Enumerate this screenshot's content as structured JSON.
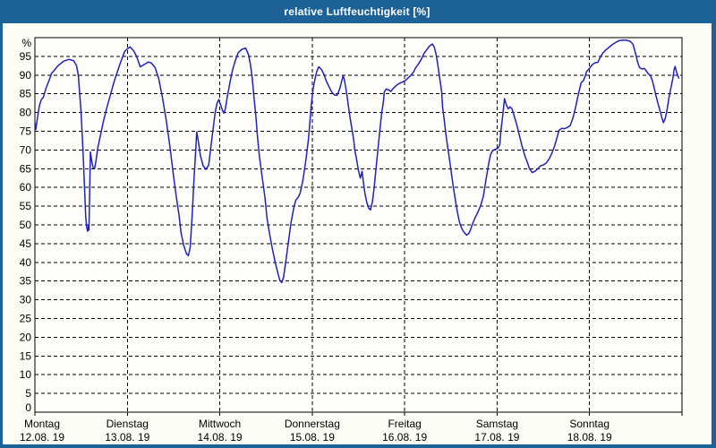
{
  "title": "relative Luftfeuchtigkeit [%]",
  "colors": {
    "titlebar": "#1d6296",
    "window_border": "#1d6296",
    "title_text": "#ffffff",
    "window_bg": "#fcfdf5",
    "plot_bg": "#fdfdf9",
    "grid": "#000000",
    "axis_text": "#000000",
    "line": "#2121c0"
  },
  "chart_data": {
    "type": "line",
    "title": "relative Luftfeuchtigkeit [%]",
    "ylabel": "%",
    "y_unit": "%",
    "ylim": [
      0,
      100
    ],
    "y_ticks": [
      0,
      5,
      10,
      15,
      20,
      25,
      30,
      35,
      40,
      45,
      50,
      55,
      60,
      65,
      70,
      75,
      80,
      85,
      90,
      95
    ],
    "xlim_days": [
      0,
      7
    ],
    "grid": "dashed",
    "legend": "none",
    "x_axis_days": [
      {
        "label": "Montag",
        "date": "12.08. 19"
      },
      {
        "label": "Dienstag",
        "date": "13.08. 19"
      },
      {
        "label": "Mittwoch",
        "date": "14.08. 19"
      },
      {
        "label": "Donnerstag",
        "date": "15.08. 19"
      },
      {
        "label": "Freitag",
        "date": "16.08. 19"
      },
      {
        "label": "Samstag",
        "date": "17.08. 19"
      },
      {
        "label": "Sonntag",
        "date": "18.08. 19"
      }
    ],
    "series": [
      {
        "name": "relative Luftfeuchtigkeit",
        "unit": "%",
        "color": "#2121c0",
        "points": [
          [
            0.005,
            77
          ],
          [
            0.01,
            75.5
          ],
          [
            0.03,
            79
          ],
          [
            0.05,
            82
          ],
          [
            0.07,
            83.5
          ],
          [
            0.09,
            84
          ],
          [
            0.12,
            86.5
          ],
          [
            0.16,
            89
          ],
          [
            0.18,
            90.5
          ],
          [
            0.2,
            91
          ],
          [
            0.25,
            92.5
          ],
          [
            0.31,
            93.7
          ],
          [
            0.37,
            94.2
          ],
          [
            0.42,
            93.8
          ],
          [
            0.45,
            92.5
          ],
          [
            0.47,
            90
          ],
          [
            0.5,
            80
          ],
          [
            0.52,
            70
          ],
          [
            0.54,
            58
          ],
          [
            0.55,
            52
          ],
          [
            0.56,
            49.5
          ],
          [
            0.57,
            48.3
          ],
          [
            0.58,
            50
          ],
          [
            0.585,
            48.6
          ],
          [
            0.59,
            55
          ],
          [
            0.6,
            69.5
          ],
          [
            0.615,
            67
          ],
          [
            0.63,
            65.2
          ],
          [
            0.645,
            65
          ],
          [
            0.66,
            67
          ],
          [
            0.68,
            70.5
          ],
          [
            0.71,
            74
          ],
          [
            0.74,
            77.5
          ],
          [
            0.78,
            81.5
          ],
          [
            0.82,
            85
          ],
          [
            0.86,
            88.5
          ],
          [
            0.9,
            91.5
          ],
          [
            0.935,
            94
          ],
          [
            0.97,
            96.3
          ],
          [
            1.0,
            97
          ],
          [
            1.03,
            97.5
          ],
          [
            1.07,
            96.4
          ],
          [
            1.1,
            95
          ],
          [
            1.14,
            92.2
          ],
          [
            1.18,
            92.8
          ],
          [
            1.23,
            93.5
          ],
          [
            1.26,
            93.2
          ],
          [
            1.3,
            92
          ],
          [
            1.34,
            89
          ],
          [
            1.38,
            84
          ],
          [
            1.42,
            78
          ],
          [
            1.46,
            71
          ],
          [
            1.5,
            63
          ],
          [
            1.53,
            57.5
          ],
          [
            1.56,
            52.5
          ],
          [
            1.58,
            48
          ],
          [
            1.61,
            44.5
          ],
          [
            1.64,
            42.3
          ],
          [
            1.66,
            41.8
          ],
          [
            1.68,
            44
          ],
          [
            1.7,
            52
          ],
          [
            1.72,
            62
          ],
          [
            1.74,
            70
          ],
          [
            1.75,
            74.8
          ],
          [
            1.77,
            72
          ],
          [
            1.79,
            68.5
          ],
          [
            1.82,
            65.8
          ],
          [
            1.85,
            64.8
          ],
          [
            1.88,
            66
          ],
          [
            1.9,
            70
          ],
          [
            1.93,
            76
          ],
          [
            1.95,
            80
          ],
          [
            1.97,
            82.5
          ],
          [
            1.99,
            83.5
          ],
          [
            2.01,
            82
          ],
          [
            2.03,
            80.5
          ],
          [
            2.045,
            79.8
          ],
          [
            2.06,
            81
          ],
          [
            2.08,
            84
          ],
          [
            2.11,
            88
          ],
          [
            2.14,
            91.5
          ],
          [
            2.17,
            94
          ],
          [
            2.2,
            96
          ],
          [
            2.24,
            96.9
          ],
          [
            2.28,
            97.2
          ],
          [
            2.31,
            95.5
          ],
          [
            2.33,
            93
          ],
          [
            2.35,
            89.5
          ],
          [
            2.37,
            84
          ],
          [
            2.39,
            79
          ],
          [
            2.41,
            73
          ],
          [
            2.43,
            68
          ],
          [
            2.46,
            62.5
          ],
          [
            2.49,
            57
          ],
          [
            2.51,
            52
          ],
          [
            2.54,
            47.5
          ],
          [
            2.57,
            43.5
          ],
          [
            2.6,
            40
          ],
          [
            2.63,
            37
          ],
          [
            2.65,
            35.2
          ],
          [
            2.67,
            34.6
          ],
          [
            2.69,
            36
          ],
          [
            2.71,
            39.5
          ],
          [
            2.74,
            45
          ],
          [
            2.77,
            50.5
          ],
          [
            2.8,
            54.5
          ],
          [
            2.82,
            56.5
          ],
          [
            2.85,
            57.5
          ],
          [
            2.87,
            58.5
          ],
          [
            2.9,
            62
          ],
          [
            2.93,
            67
          ],
          [
            2.96,
            73
          ],
          [
            2.99,
            82
          ],
          [
            3.01,
            86.5
          ],
          [
            3.03,
            89
          ],
          [
            3.05,
            91
          ],
          [
            3.07,
            92.2
          ],
          [
            3.1,
            91.5
          ],
          [
            3.13,
            90
          ],
          [
            3.15,
            88.5
          ],
          [
            3.18,
            87
          ],
          [
            3.21,
            85.5
          ],
          [
            3.24,
            84.7
          ],
          [
            3.27,
            84.6
          ],
          [
            3.3,
            86.5
          ],
          [
            3.32,
            88.5
          ],
          [
            3.335,
            89.8
          ],
          [
            3.35,
            88.5
          ],
          [
            3.37,
            85.5
          ],
          [
            3.39,
            82
          ],
          [
            3.41,
            78.5
          ],
          [
            3.43,
            75.5
          ],
          [
            3.45,
            72.5
          ],
          [
            3.46,
            70
          ],
          [
            3.48,
            67.5
          ],
          [
            3.5,
            64.5
          ],
          [
            3.52,
            62.5
          ],
          [
            3.54,
            64.3
          ],
          [
            3.55,
            62
          ],
          [
            3.57,
            58.5
          ],
          [
            3.59,
            56
          ],
          [
            3.61,
            54.5
          ],
          [
            3.63,
            54
          ],
          [
            3.65,
            56
          ],
          [
            3.67,
            60
          ],
          [
            3.69,
            65
          ],
          [
            3.71,
            70
          ],
          [
            3.73,
            75
          ],
          [
            3.75,
            79.5
          ],
          [
            3.77,
            83
          ],
          [
            3.78,
            85.5
          ],
          [
            3.8,
            86.3
          ],
          [
            3.83,
            86
          ],
          [
            3.85,
            85.6
          ],
          [
            3.87,
            86.3
          ],
          [
            3.9,
            87
          ],
          [
            3.93,
            87.6
          ],
          [
            3.96,
            88
          ],
          [
            3.99,
            88.3
          ],
          [
            4.01,
            88.6
          ],
          [
            4.04,
            89.3
          ],
          [
            4.07,
            90
          ],
          [
            4.1,
            91
          ],
          [
            4.12,
            92
          ],
          [
            4.15,
            93
          ],
          [
            4.18,
            94.2
          ],
          [
            4.21,
            95.8
          ],
          [
            4.24,
            96.8
          ],
          [
            4.27,
            97.8
          ],
          [
            4.3,
            98.3
          ],
          [
            4.32,
            97.5
          ],
          [
            4.34,
            95.5
          ],
          [
            4.36,
            92.5
          ],
          [
            4.38,
            89
          ],
          [
            4.4,
            85.5
          ],
          [
            4.41,
            81.5
          ],
          [
            4.43,
            77.5
          ],
          [
            4.45,
            73.5
          ],
          [
            4.47,
            70
          ],
          [
            4.49,
            66.5
          ],
          [
            4.51,
            63
          ],
          [
            4.53,
            59.5
          ],
          [
            4.55,
            56.5
          ],
          [
            4.57,
            53.5
          ],
          [
            4.59,
            51
          ],
          [
            4.61,
            49.5
          ],
          [
            4.63,
            48.5
          ],
          [
            4.65,
            47.8
          ],
          [
            4.67,
            47.3
          ],
          [
            4.69,
            47.6
          ],
          [
            4.71,
            48.5
          ],
          [
            4.73,
            50
          ],
          [
            4.76,
            51.8
          ],
          [
            4.79,
            53.3
          ],
          [
            4.82,
            55
          ],
          [
            4.85,
            57.5
          ],
          [
            4.88,
            62
          ],
          [
            4.91,
            66.5
          ],
          [
            4.93,
            68.8
          ],
          [
            4.95,
            69.8
          ],
          [
            4.98,
            70.2
          ],
          [
            5.01,
            70.5
          ],
          [
            5.03,
            71.5
          ],
          [
            5.04,
            75
          ],
          [
            5.06,
            79
          ],
          [
            5.08,
            83.7
          ],
          [
            5.1,
            82
          ],
          [
            5.12,
            81
          ],
          [
            5.14,
            81.5
          ],
          [
            5.16,
            81
          ],
          [
            5.18,
            79.5
          ],
          [
            5.21,
            77
          ],
          [
            5.24,
            74
          ],
          [
            5.27,
            71
          ],
          [
            5.3,
            68.5
          ],
          [
            5.33,
            66.5
          ],
          [
            5.35,
            65
          ],
          [
            5.38,
            64
          ],
          [
            5.41,
            64.3
          ],
          [
            5.44,
            65
          ],
          [
            5.47,
            65.8
          ],
          [
            5.5,
            66
          ],
          [
            5.53,
            66.5
          ],
          [
            5.56,
            67.5
          ],
          [
            5.59,
            69
          ],
          [
            5.62,
            71
          ],
          [
            5.65,
            73.5
          ],
          [
            5.67,
            75.3
          ],
          [
            5.7,
            75.8
          ],
          [
            5.73,
            75.7
          ],
          [
            5.76,
            76
          ],
          [
            5.79,
            76.5
          ],
          [
            5.82,
            78.5
          ],
          [
            5.85,
            81.5
          ],
          [
            5.88,
            85
          ],
          [
            5.91,
            88
          ],
          [
            5.93,
            88.4
          ],
          [
            5.95,
            89.5
          ],
          [
            5.97,
            91
          ],
          [
            6.0,
            91.8
          ],
          [
            6.03,
            92.8
          ],
          [
            6.06,
            93.3
          ],
          [
            6.09,
            93.4
          ],
          [
            6.11,
            94.5
          ],
          [
            6.14,
            95.8
          ],
          [
            6.17,
            96.6
          ],
          [
            6.2,
            97.2
          ],
          [
            6.22,
            97.6
          ],
          [
            6.25,
            98.2
          ],
          [
            6.29,
            98.8
          ],
          [
            6.32,
            99.2
          ],
          [
            6.36,
            99.3
          ],
          [
            6.4,
            99.3
          ],
          [
            6.44,
            99.0
          ],
          [
            6.47,
            98.2
          ],
          [
            6.5,
            95.5
          ],
          [
            6.52,
            93.5
          ],
          [
            6.54,
            92
          ],
          [
            6.57,
            91.6
          ],
          [
            6.59,
            91.8
          ],
          [
            6.61,
            91.3
          ],
          [
            6.63,
            90.5
          ],
          [
            6.66,
            89.8
          ],
          [
            6.68,
            88.5
          ],
          [
            6.7,
            86.5
          ],
          [
            6.72,
            84.3
          ],
          [
            6.74,
            82.5
          ],
          [
            6.76,
            80.7
          ],
          [
            6.78,
            78.8
          ],
          [
            6.8,
            77.3
          ],
          [
            6.82,
            78.5
          ],
          [
            6.84,
            81
          ],
          [
            6.86,
            84
          ],
          [
            6.88,
            86.5
          ],
          [
            6.9,
            89
          ],
          [
            6.915,
            91.5
          ],
          [
            6.925,
            92.3
          ],
          [
            6.945,
            90.5
          ],
          [
            6.965,
            89.2
          ]
        ]
      }
    ]
  }
}
